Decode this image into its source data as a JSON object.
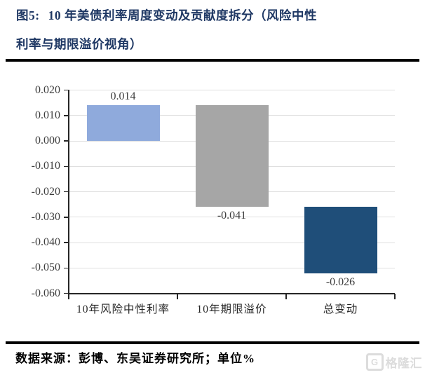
{
  "figure": {
    "label": "图5:",
    "title_line1": "10 年美债利率周度变动及贡献度拆分（风险中性",
    "title_line2": "利率与期限溢价视角）",
    "source_note": "数据来源：彭博、东吴证券研究所；单位%",
    "watermark": {
      "icon": "G",
      "text": "格隆汇"
    }
  },
  "colors": {
    "title_navy": "#1f3864",
    "bar_blue": "#8faadc",
    "bar_gray": "#a6a6a6",
    "bar_navy": "#1f4e79",
    "gridline": "#dfdfdf",
    "axis": "#262626",
    "tick_text": "#3d3d3d",
    "watermark_gray": "#dcdcdc"
  },
  "chart_data": {
    "type": "bar",
    "subtype": "waterfall",
    "title": "10 年美债利率周度变动及贡献度拆分（风险中性利率与期限溢价视角）",
    "categories": [
      "10年风险中性利率",
      "10年期限溢价",
      "总变动"
    ],
    "values": [
      0.014,
      -0.041,
      -0.026
    ],
    "data_labels": [
      "0.014",
      "-0.041",
      "-0.026"
    ],
    "bar_spans": [
      [
        0.0,
        0.014
      ],
      [
        0.014,
        -0.026
      ],
      [
        -0.026,
        -0.052
      ]
    ],
    "bar_colors": [
      "#8faadc",
      "#a6a6a6",
      "#1f4e79"
    ],
    "ylim": [
      -0.06,
      0.02
    ],
    "ytick_step": 0.01,
    "ytick_labels": [
      "0.020",
      "0.010",
      "0.000",
      "-0.010",
      "-0.020",
      "-0.030",
      "-0.040",
      "-0.050",
      "-0.060"
    ],
    "xlabel": "",
    "ylabel": "",
    "grid": true,
    "legend": false,
    "unit_note": "单位%"
  }
}
